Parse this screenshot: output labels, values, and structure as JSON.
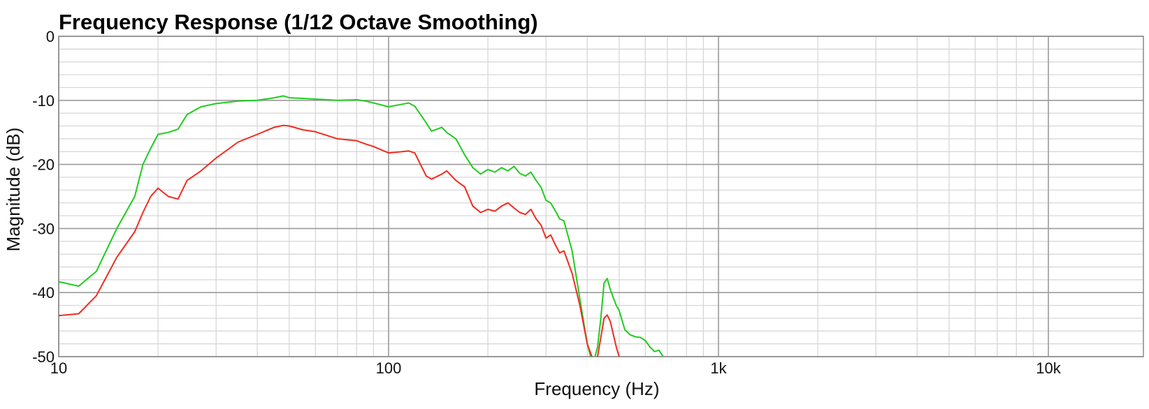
{
  "chart_data": {
    "type": "line",
    "title": "Frequency Response (1/12 Octave Smoothing)",
    "xlabel": "Frequency (Hz)",
    "ylabel": "Magnitude (dB)",
    "x_scale": "log",
    "xlim": [
      10,
      20000
    ],
    "ylim": [
      -50,
      0
    ],
    "x_ticks": [
      {
        "value": 10,
        "label": "10"
      },
      {
        "value": 100,
        "label": "100"
      },
      {
        "value": 1000,
        "label": "1k"
      },
      {
        "value": 10000,
        "label": "10k"
      }
    ],
    "y_ticks": [
      {
        "value": 0,
        "label": "0"
      },
      {
        "value": -10,
        "label": "-10"
      },
      {
        "value": -20,
        "label": "-20"
      },
      {
        "value": -30,
        "label": "-30"
      },
      {
        "value": -40,
        "label": "-40"
      },
      {
        "value": -50,
        "label": "-50"
      }
    ],
    "grid": true,
    "legend": "none",
    "colors": {
      "green_series": "#1fcc1f",
      "red_series": "#f22b1e",
      "major_grid": "#9a9a9a",
      "minor_grid": "#d4d4d4",
      "frame": "#888888"
    },
    "series": [
      {
        "color": "#1fcc1f",
        "x": [
          10,
          11.5,
          13,
          15,
          17,
          18,
          19,
          20,
          21.5,
          23,
          24.5,
          27,
          30,
          35,
          40,
          45,
          48,
          50,
          55,
          60,
          70,
          80,
          85,
          90,
          100,
          110,
          115,
          120,
          130,
          135,
          145,
          150,
          160,
          170,
          180,
          190,
          200,
          210,
          220,
          230,
          240,
          250,
          260,
          270,
          280,
          290,
          300,
          310,
          320,
          330,
          340,
          360,
          380,
          400,
          410,
          420,
          430,
          440,
          450,
          460,
          470,
          480,
          490,
          500,
          520,
          540,
          560,
          580,
          600,
          620,
          640,
          660,
          680
        ],
        "values": [
          -38.3,
          -39.0,
          -36.7,
          -30,
          -25,
          -20,
          -17.5,
          -15.3,
          -15.0,
          -14.5,
          -12.2,
          -11.0,
          -10.5,
          -10.1,
          -10.0,
          -9.6,
          -9.3,
          -9.6,
          -9.7,
          -9.8,
          -10.0,
          -9.9,
          -10.1,
          -10.4,
          -11.0,
          -10.6,
          -10.4,
          -10.9,
          -13.5,
          -14.8,
          -14.2,
          -15.0,
          -16.0,
          -18.5,
          -20.5,
          -21.5,
          -20.8,
          -21.2,
          -20.5,
          -21.0,
          -20.3,
          -21.4,
          -21.8,
          -21.2,
          -22.5,
          -23.6,
          -25.6,
          -26.0,
          -27.2,
          -28.5,
          -28.8,
          -33.5,
          -41.0,
          -48.0,
          -50.0,
          -50.5,
          -48.5,
          -44.0,
          -38.5,
          -37.8,
          -39.5,
          -40.8,
          -42.0,
          -42.8,
          -45.8,
          -46.6,
          -46.9,
          -47.0,
          -47.5,
          -48.5,
          -49.2,
          -49.0,
          -50.0
        ]
      },
      {
        "color": "#f22b1e",
        "x": [
          10,
          11.5,
          13,
          15,
          17,
          18,
          19,
          20,
          21.5,
          23,
          24.5,
          27,
          30,
          35,
          40,
          45,
          48,
          50,
          55,
          60,
          70,
          80,
          85,
          90,
          100,
          110,
          115,
          120,
          130,
          135,
          145,
          150,
          160,
          170,
          180,
          190,
          200,
          210,
          220,
          230,
          240,
          250,
          260,
          270,
          280,
          290,
          300,
          310,
          320,
          330,
          340,
          360,
          380,
          400,
          420,
          430,
          440,
          450,
          460,
          470,
          480,
          490,
          500,
          510
        ],
        "values": [
          -43.6,
          -43.3,
          -40.5,
          -34.5,
          -30.5,
          -27.5,
          -25.0,
          -23.7,
          -25.0,
          -25.4,
          -22.5,
          -21.0,
          -19.0,
          -16.5,
          -15.3,
          -14.2,
          -13.9,
          -14.0,
          -14.6,
          -14.9,
          -16.0,
          -16.3,
          -16.8,
          -17.2,
          -18.2,
          -18.0,
          -17.9,
          -18.2,
          -21.8,
          -22.3,
          -21.5,
          -21.0,
          -22.5,
          -23.5,
          -26.5,
          -27.5,
          -27.0,
          -27.3,
          -26.5,
          -26.0,
          -26.8,
          -27.5,
          -27.8,
          -27.0,
          -28.5,
          -29.5,
          -31.5,
          -31.0,
          -32.5,
          -33.8,
          -33.5,
          -37.0,
          -42.0,
          -48.0,
          -51.0,
          -50.0,
          -47.0,
          -44.0,
          -43.5,
          -44.5,
          -46.5,
          -48.5,
          -50.0,
          -51.0
        ]
      }
    ]
  }
}
